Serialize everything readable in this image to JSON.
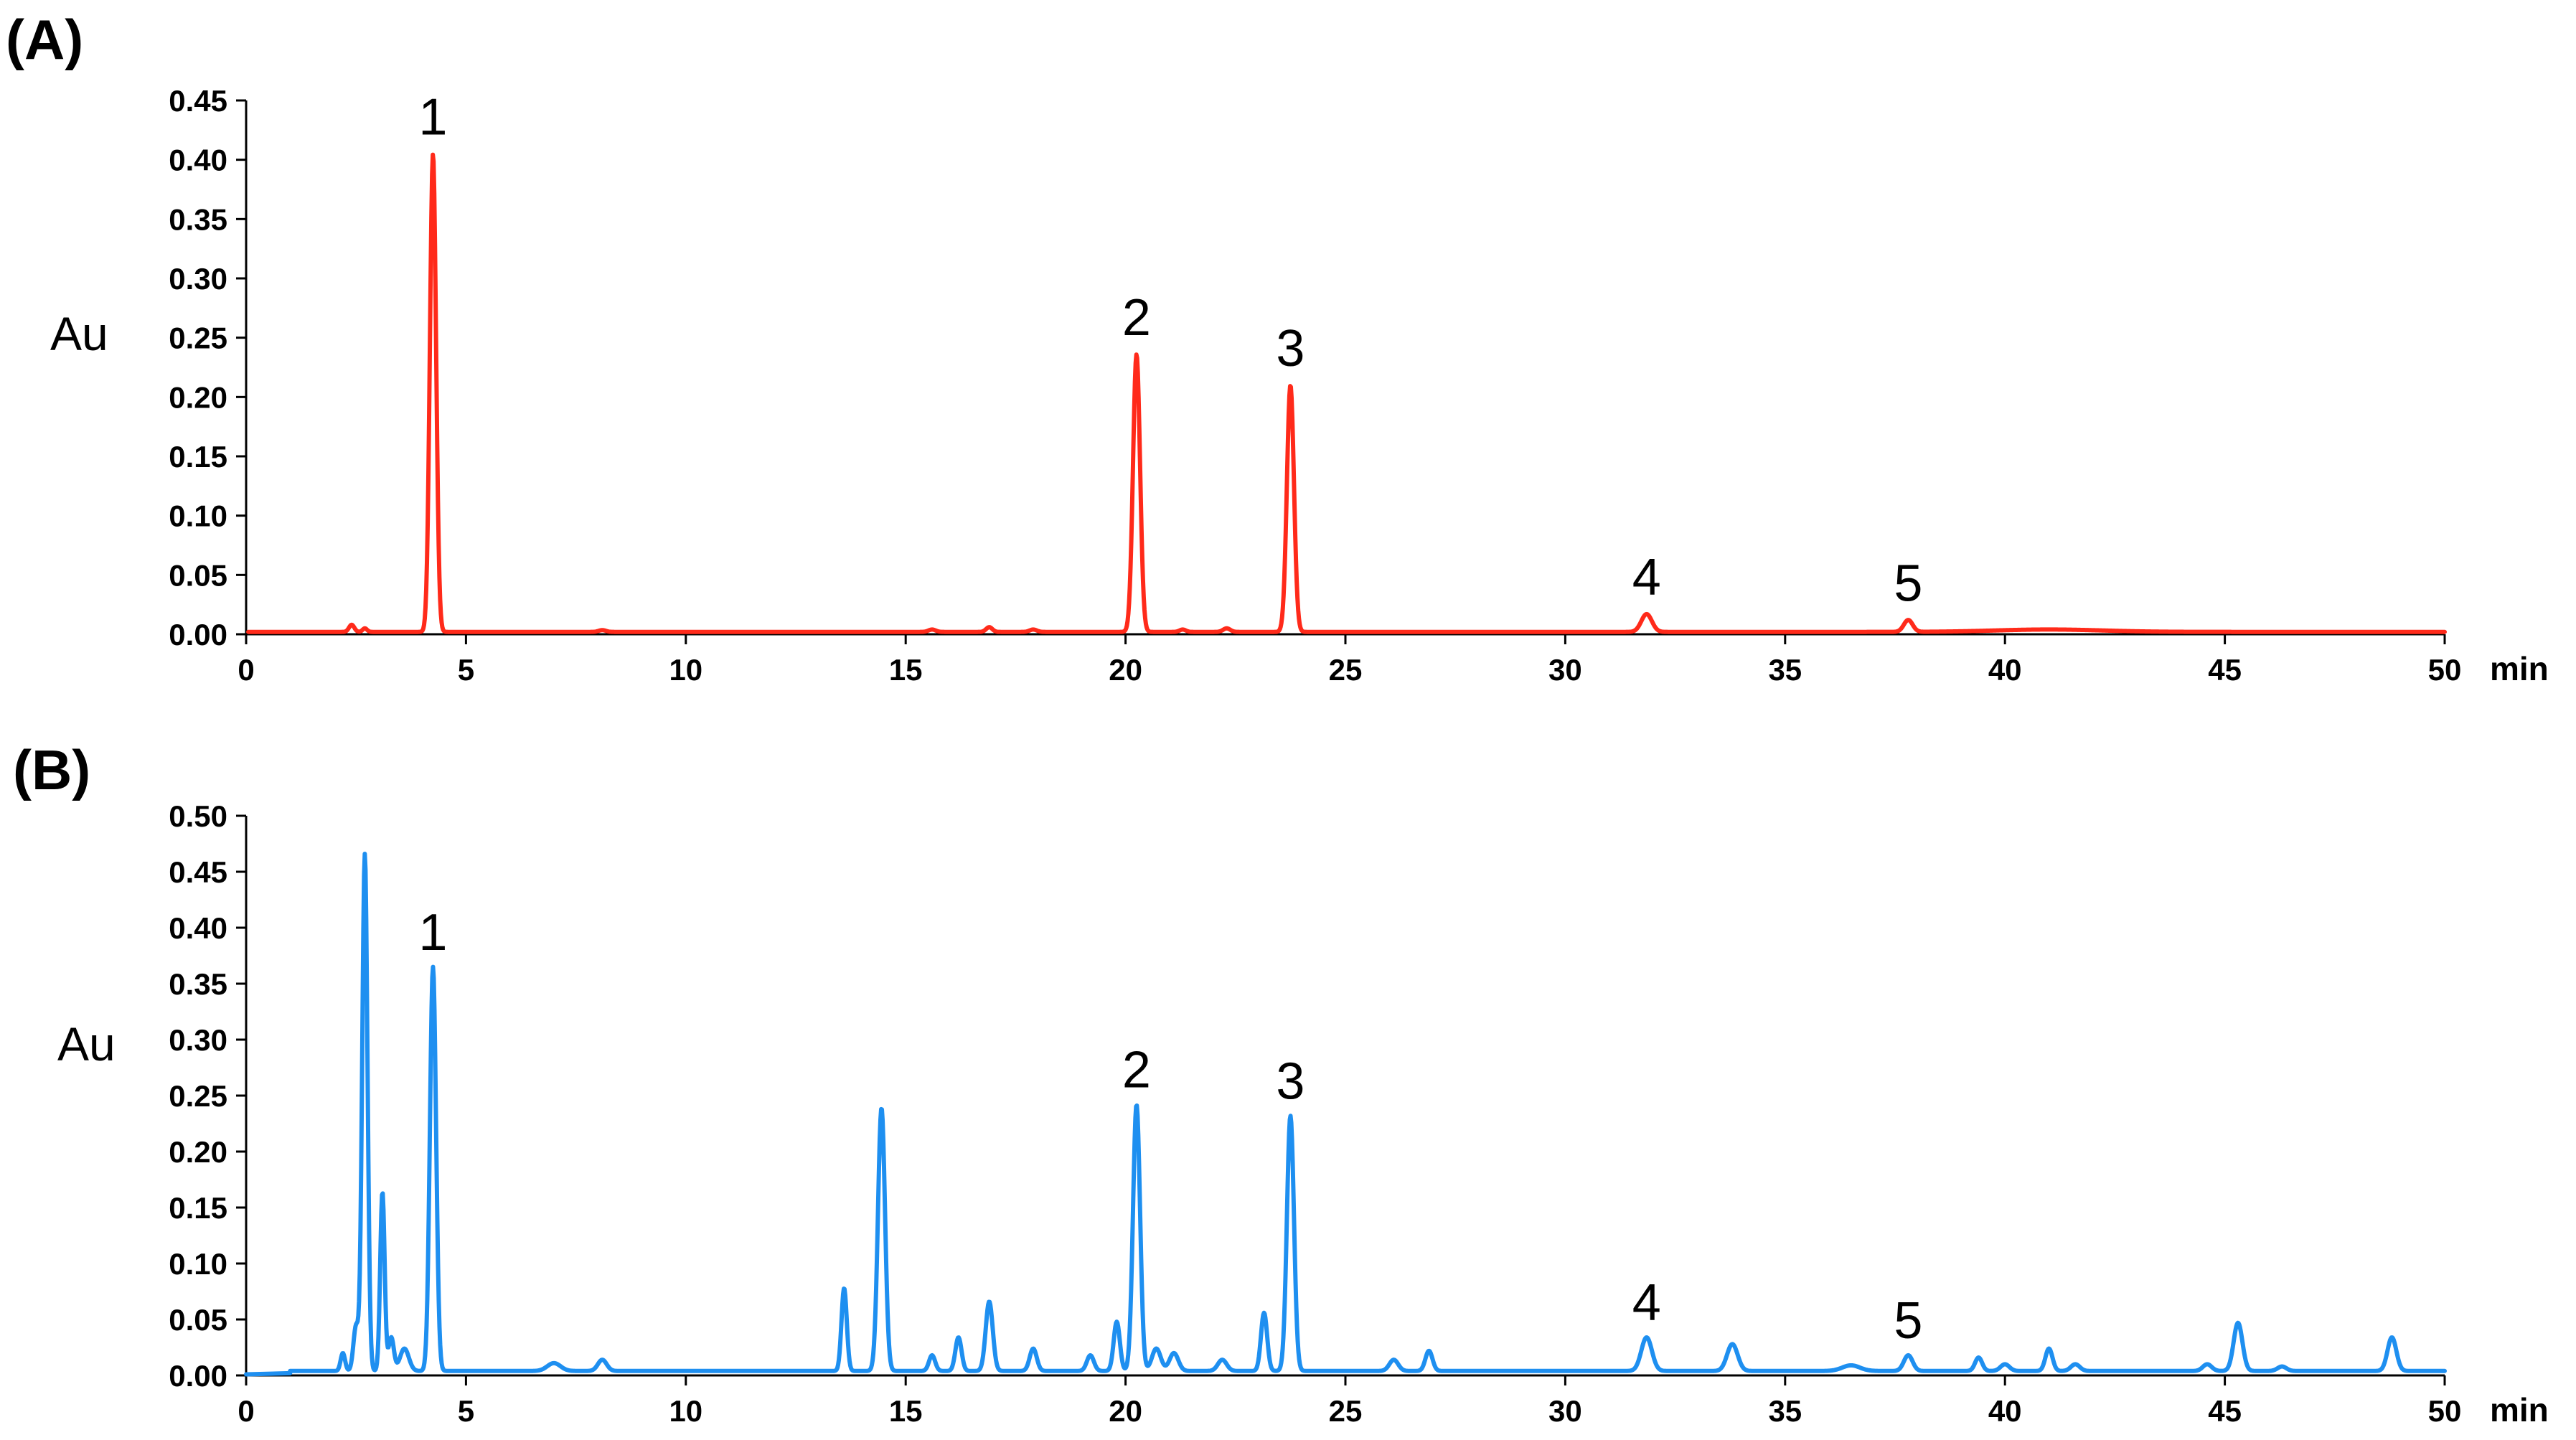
{
  "chart_data": [
    {
      "type": "line",
      "panel_label": "(A)",
      "xlabel": "min",
      "ylabel": "Au",
      "xlim": [
        0,
        50
      ],
      "ylim": [
        0,
        0.45
      ],
      "x_ticks": [
        "0",
        "5",
        "10",
        "15",
        "20",
        "25",
        "30",
        "35",
        "40",
        "45",
        "50"
      ],
      "y_ticks": [
        "0.00",
        "0.05",
        "0.10",
        "0.15",
        "0.20",
        "0.25",
        "0.30",
        "0.35",
        "0.40",
        "0.45"
      ],
      "grid": false,
      "color": "#ff2a1a",
      "baseline": 0.002,
      "peaks": [
        {
          "x": 2.4,
          "y": 0.006,
          "w": 0.06
        },
        {
          "x": 2.7,
          "y": 0.003,
          "w": 0.05
        },
        {
          "x": 4.25,
          "y": 0.403,
          "w": 0.07
        },
        {
          "x": 8.1,
          "y": 0.0015,
          "w": 0.08
        },
        {
          "x": 15.6,
          "y": 0.002,
          "w": 0.08
        },
        {
          "x": 16.9,
          "y": 0.004,
          "w": 0.07
        },
        {
          "x": 17.9,
          "y": 0.002,
          "w": 0.08
        },
        {
          "x": 20.25,
          "y": 0.234,
          "w": 0.08
        },
        {
          "x": 21.3,
          "y": 0.002,
          "w": 0.07
        },
        {
          "x": 22.3,
          "y": 0.003,
          "w": 0.08
        },
        {
          "x": 23.75,
          "y": 0.208,
          "w": 0.08
        },
        {
          "x": 31.85,
          "y": 0.015,
          "w": 0.12
        },
        {
          "x": 37.8,
          "y": 0.01,
          "w": 0.1
        },
        {
          "x": 41.0,
          "y": 0.002,
          "w": 1.2
        }
      ],
      "peak_labels": [
        {
          "text": "1",
          "x": 4.25,
          "y": 0.403
        },
        {
          "text": "2",
          "x": 20.25,
          "y": 0.234
        },
        {
          "text": "3",
          "x": 23.75,
          "y": 0.208
        },
        {
          "text": "4",
          "x": 31.85,
          "y": 0.015
        },
        {
          "text": "5",
          "x": 37.8,
          "y": 0.01
        }
      ]
    },
    {
      "type": "line",
      "panel_label": "(B)",
      "xlabel": "min",
      "ylabel": "Au",
      "xlim": [
        0,
        50
      ],
      "ylim": [
        0,
        0.5
      ],
      "x_ticks": [
        "0",
        "5",
        "10",
        "15",
        "20",
        "25",
        "30",
        "35",
        "40",
        "45",
        "50"
      ],
      "y_ticks": [
        "0.00",
        "0.05",
        "0.10",
        "0.15",
        "0.20",
        "0.25",
        "0.30",
        "0.35",
        "0.40",
        "0.45",
        "0.50"
      ],
      "grid": false,
      "color": "#1e8ff0",
      "baseline": 0.004,
      "peaks": [
        {
          "x": 2.2,
          "y": 0.016,
          "w": 0.05
        },
        {
          "x": 2.5,
          "y": 0.04,
          "w": 0.06
        },
        {
          "x": 2.7,
          "y": 0.462,
          "w": 0.06
        },
        {
          "x": 3.1,
          "y": 0.16,
          "w": 0.05
        },
        {
          "x": 3.3,
          "y": 0.03,
          "w": 0.06
        },
        {
          "x": 3.6,
          "y": 0.02,
          "w": 0.1
        },
        {
          "x": 4.25,
          "y": 0.361,
          "w": 0.07
        },
        {
          "x": 7.0,
          "y": 0.007,
          "w": 0.15
        },
        {
          "x": 8.1,
          "y": 0.01,
          "w": 0.1
        },
        {
          "x": 13.6,
          "y": 0.074,
          "w": 0.06
        },
        {
          "x": 14.45,
          "y": 0.235,
          "w": 0.08
        },
        {
          "x": 15.6,
          "y": 0.014,
          "w": 0.07
        },
        {
          "x": 16.2,
          "y": 0.03,
          "w": 0.07
        },
        {
          "x": 16.9,
          "y": 0.062,
          "w": 0.08
        },
        {
          "x": 17.9,
          "y": 0.02,
          "w": 0.08
        },
        {
          "x": 19.2,
          "y": 0.014,
          "w": 0.08
        },
        {
          "x": 19.8,
          "y": 0.044,
          "w": 0.07
        },
        {
          "x": 20.25,
          "y": 0.238,
          "w": 0.08
        },
        {
          "x": 20.7,
          "y": 0.02,
          "w": 0.1
        },
        {
          "x": 21.1,
          "y": 0.016,
          "w": 0.1
        },
        {
          "x": 22.2,
          "y": 0.01,
          "w": 0.1
        },
        {
          "x": 23.15,
          "y": 0.052,
          "w": 0.07
        },
        {
          "x": 23.75,
          "y": 0.228,
          "w": 0.08
        },
        {
          "x": 26.1,
          "y": 0.01,
          "w": 0.1
        },
        {
          "x": 26.9,
          "y": 0.018,
          "w": 0.08
        },
        {
          "x": 31.85,
          "y": 0.03,
          "w": 0.12
        },
        {
          "x": 33.8,
          "y": 0.024,
          "w": 0.12
        },
        {
          "x": 36.5,
          "y": 0.005,
          "w": 0.2
        },
        {
          "x": 37.8,
          "y": 0.014,
          "w": 0.1
        },
        {
          "x": 39.4,
          "y": 0.012,
          "w": 0.08
        },
        {
          "x": 40.0,
          "y": 0.006,
          "w": 0.1
        },
        {
          "x": 41.0,
          "y": 0.02,
          "w": 0.08
        },
        {
          "x": 41.6,
          "y": 0.006,
          "w": 0.1
        },
        {
          "x": 44.6,
          "y": 0.006,
          "w": 0.1
        },
        {
          "x": 45.3,
          "y": 0.043,
          "w": 0.1
        },
        {
          "x": 46.3,
          "y": 0.004,
          "w": 0.1
        },
        {
          "x": 48.8,
          "y": 0.03,
          "w": 0.1
        }
      ],
      "peak_labels": [
        {
          "text": "1",
          "x": 4.25,
          "y": 0.361
        },
        {
          "text": "2",
          "x": 20.25,
          "y": 0.238
        },
        {
          "text": "3",
          "x": 23.75,
          "y": 0.228
        },
        {
          "text": "4",
          "x": 31.85,
          "y": 0.03
        },
        {
          "text": "5",
          "x": 37.8,
          "y": 0.014
        }
      ]
    }
  ]
}
